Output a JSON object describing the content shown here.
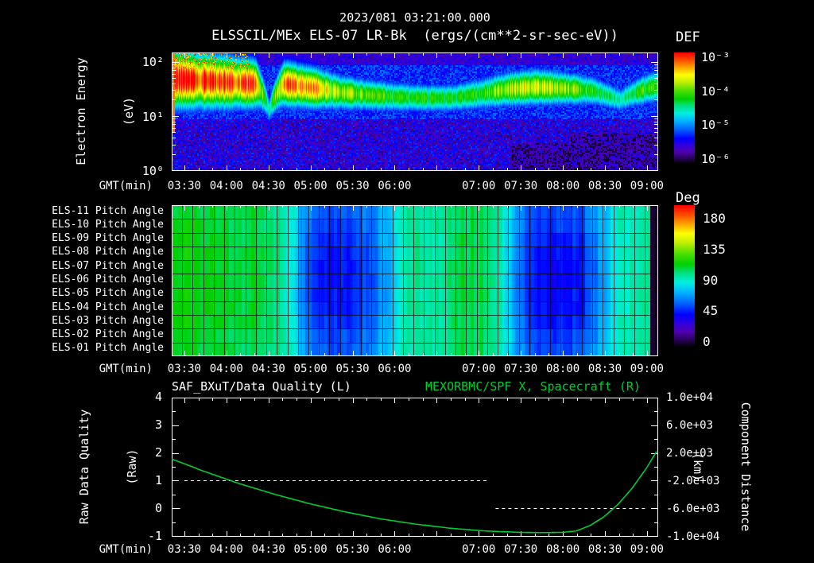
{
  "header": {
    "datetime": "2023/081 03:21:00.000",
    "title": "ELSSCIL/MEx ELS-07 LR-Bk  (ergs/(cm**2-sr-sec-eV))"
  },
  "time_axis": {
    "label": "GMT(min)",
    "span_min": [
      201,
      548
    ],
    "ticks": [
      {
        "m": 210,
        "label": "03:30"
      },
      {
        "m": 240,
        "label": "04:00"
      },
      {
        "m": 270,
        "label": "04:30"
      },
      {
        "m": 300,
        "label": "05:00"
      },
      {
        "m": 330,
        "label": "05:30"
      },
      {
        "m": 360,
        "label": "06:00"
      },
      {
        "m": 390,
        "label": ""
      },
      {
        "m": 420,
        "label": "07:00"
      },
      {
        "m": 450,
        "label": "07:30"
      },
      {
        "m": 480,
        "label": "08:00"
      },
      {
        "m": 510,
        "label": "08:30"
      },
      {
        "m": 540,
        "label": "09:00"
      }
    ]
  },
  "colors": {
    "background": "#000000",
    "text": "#ffffff",
    "accent_green": "#00cc33",
    "colormap": [
      [
        0.0,
        "#0a0014"
      ],
      [
        0.05,
        "#30006a"
      ],
      [
        0.1,
        "#5000b0"
      ],
      [
        0.16,
        "#3000e0"
      ],
      [
        0.22,
        "#0000ff"
      ],
      [
        0.3,
        "#0060ff"
      ],
      [
        0.38,
        "#00b4ff"
      ],
      [
        0.45,
        "#00f0e0"
      ],
      [
        0.52,
        "#00e080"
      ],
      [
        0.58,
        "#00d000"
      ],
      [
        0.66,
        "#50e000"
      ],
      [
        0.74,
        "#c8f000"
      ],
      [
        0.8,
        "#ffff00"
      ],
      [
        0.87,
        "#ffa000"
      ],
      [
        0.93,
        "#ff5000"
      ],
      [
        1.0,
        "#ff0000"
      ]
    ]
  },
  "chart_data": [
    {
      "type": "heatmap",
      "name": "electron-energy-spectrogram",
      "title": "ELSSCIL/MEx ELS-07 LR-Bk (ergs/(cm**2-sr-sec-eV))",
      "ylabel": [
        "Electron Energy",
        "(eV)"
      ],
      "y_scale": "log",
      "y_ticks": [
        "10²",
        "10¹",
        "10⁰"
      ],
      "y_range_eV": [
        1,
        150
      ],
      "x_range_gmt": [
        "03:21",
        "09:08"
      ],
      "colorbar": {
        "label": "DEF",
        "ticks": [
          "10⁻³",
          "10⁻⁴",
          "10⁻⁵",
          "10⁻⁶"
        ],
        "units": "ergs/(cm**2-sr-sec-eV)"
      },
      "band": {
        "t": [
          0.0,
          0.06,
          0.115,
          0.173,
          0.2,
          0.23,
          0.288,
          0.346,
          0.403,
          0.461,
          0.519,
          0.576,
          0.634,
          0.692,
          0.75,
          0.807,
          0.865,
          0.922,
          0.98,
          1.0
        ],
        "center_eV": [
          50,
          46,
          43,
          40,
          13,
          40,
          34,
          28,
          25,
          23,
          22,
          22,
          26,
          32,
          35,
          33,
          30,
          20,
          33,
          36
        ],
        "peak": [
          1.0,
          0.97,
          0.97,
          0.9,
          0.45,
          0.93,
          0.86,
          0.72,
          0.65,
          0.6,
          0.58,
          0.58,
          0.62,
          0.73,
          0.76,
          0.7,
          0.62,
          0.5,
          0.65,
          0.62
        ],
        "sigma_dec": [
          0.38,
          0.36,
          0.34,
          0.31,
          0.18,
          0.29,
          0.27,
          0.23,
          0.21,
          0.2,
          0.19,
          0.19,
          0.21,
          0.23,
          0.24,
          0.22,
          0.2,
          0.17,
          0.21,
          0.22
        ]
      }
    },
    {
      "type": "heatmap",
      "name": "pitch-angle-panels",
      "rows": [
        "ELS-11 Pitch Angle",
        "ELS-10 Pitch Angle",
        "ELS-09 Pitch Angle",
        "ELS-08 Pitch Angle",
        "ELS-07 Pitch Angle",
        "ELS-06 Pitch Angle",
        "ELS-05 Pitch Angle",
        "ELS-04 Pitch Angle",
        "ELS-03 Pitch Angle",
        "ELS-02 Pitch Angle",
        "ELS-01 Pitch Angle"
      ],
      "colorbar": {
        "label": "Deg",
        "ticks": [
          "180",
          "135",
          "90",
          "45",
          "0"
        ],
        "range": [
          0,
          180
        ]
      },
      "base": {
        "t": [
          0,
          0.12,
          0.2,
          0.24,
          0.27,
          0.3,
          0.34,
          0.38,
          0.42,
          0.46,
          0.5,
          0.54,
          0.58,
          0.62,
          0.65,
          0.68,
          0.71,
          0.74,
          0.78,
          0.82,
          0.86,
          0.89,
          0.92,
          0.96,
          1.0
        ],
        "deg": [
          105,
          102,
          98,
          85,
          60,
          48,
          45,
          47,
          58,
          78,
          92,
          88,
          95,
          100,
          97,
          85,
          62,
          48,
          43,
          44,
          52,
          68,
          82,
          90,
          93
        ]
      },
      "row_gain": [
        0.85,
        0.9,
        1.0,
        1.05,
        1.08,
        1.08,
        1.08,
        1.05,
        1.0,
        0.9,
        0.85
      ]
    },
    {
      "type": "line",
      "name": "data-quality-and-spacecraft-x",
      "titles": [
        {
          "text": "SAF_BXuT/Data Quality (L)",
          "color": "#ffffff"
        },
        {
          "text": "MEXORBMC/SPF X, Spacecraft (R)",
          "color": "#00cc33"
        }
      ],
      "left_axis": {
        "label": [
          "Raw Data Quality",
          "(Raw)"
        ],
        "ticks": [
          "4",
          "3",
          "2",
          "1",
          "0",
          "-1"
        ],
        "range": [
          -1,
          4
        ]
      },
      "right_axis": {
        "label": [
          "Component Distance",
          "(km)"
        ],
        "ticks": [
          "1.0e+04",
          "6.0e+03",
          "2.0e+03",
          "-2.0e+03",
          "-6.0e+03",
          "-1.0e+04"
        ],
        "range": [
          -10000,
          10000
        ]
      },
      "series": {
        "name": "MEXORBMC/SPF X, Spacecraft",
        "color": "#00cc33",
        "points": [
          [
            201,
            1.78
          ],
          [
            225,
            1.32
          ],
          [
            250,
            0.88
          ],
          [
            275,
            0.5
          ],
          [
            300,
            0.16
          ],
          [
            325,
            -0.13
          ],
          [
            350,
            -0.38
          ],
          [
            375,
            -0.57
          ],
          [
            400,
            -0.72
          ],
          [
            425,
            -0.82
          ],
          [
            450,
            -0.87
          ],
          [
            465,
            -0.88
          ],
          [
            480,
            -0.87
          ],
          [
            490,
            -0.82
          ],
          [
            500,
            -0.62
          ],
          [
            510,
            -0.3
          ],
          [
            520,
            0.15
          ],
          [
            530,
            0.73
          ],
          [
            540,
            1.44
          ],
          [
            548,
            2.1
          ]
        ]
      },
      "quality_segments": [
        {
          "raw": 0,
          "from": 202,
          "to": 207,
          "dashed": false
        },
        {
          "raw": 1,
          "from": 210,
          "to": 426,
          "dashed": true
        },
        {
          "raw": 0,
          "from": 432,
          "to": 540,
          "dashed": true
        }
      ]
    }
  ]
}
